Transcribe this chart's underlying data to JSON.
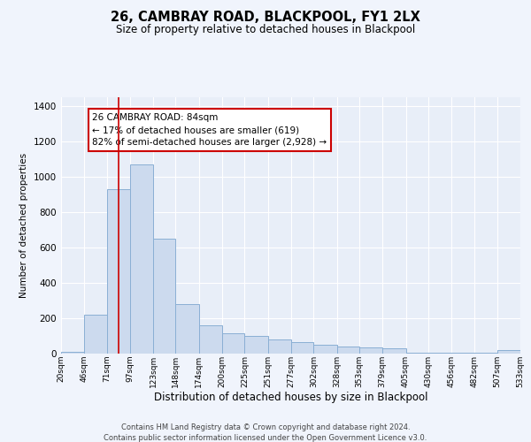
{
  "title": "26, CAMBRAY ROAD, BLACKPOOL, FY1 2LX",
  "subtitle": "Size of property relative to detached houses in Blackpool",
  "xlabel": "Distribution of detached houses by size in Blackpool",
  "ylabel": "Number of detached properties",
  "bar_color": "#ccdaee",
  "bar_edge_color": "#8aafd4",
  "background_color": "#e8eef8",
  "grid_color": "#ffffff",
  "fig_bg_color": "#f0f4fc",
  "vline_x": 84,
  "annotation_text": "26 CAMBRAY ROAD: 84sqm\n← 17% of detached houses are smaller (619)\n82% of semi-detached houses are larger (2,928) →",
  "annotation_box_edge": "#cc0000",
  "footer1": "Contains HM Land Registry data © Crown copyright and database right 2024.",
  "footer2": "Contains public sector information licensed under the Open Government Licence v3.0.",
  "bin_edges": [
    20,
    46,
    71,
    97,
    123,
    148,
    174,
    200,
    225,
    251,
    277,
    302,
    328,
    353,
    379,
    405,
    430,
    456,
    482,
    507,
    533
  ],
  "bar_heights": [
    10,
    220,
    930,
    1070,
    650,
    280,
    160,
    115,
    100,
    80,
    65,
    50,
    40,
    35,
    30,
    5,
    5,
    5,
    5,
    20
  ],
  "yticks": [
    0,
    200,
    400,
    600,
    800,
    1000,
    1200,
    1400
  ],
  "ylim": [
    0,
    1450
  ],
  "xlim": [
    20,
    533
  ]
}
